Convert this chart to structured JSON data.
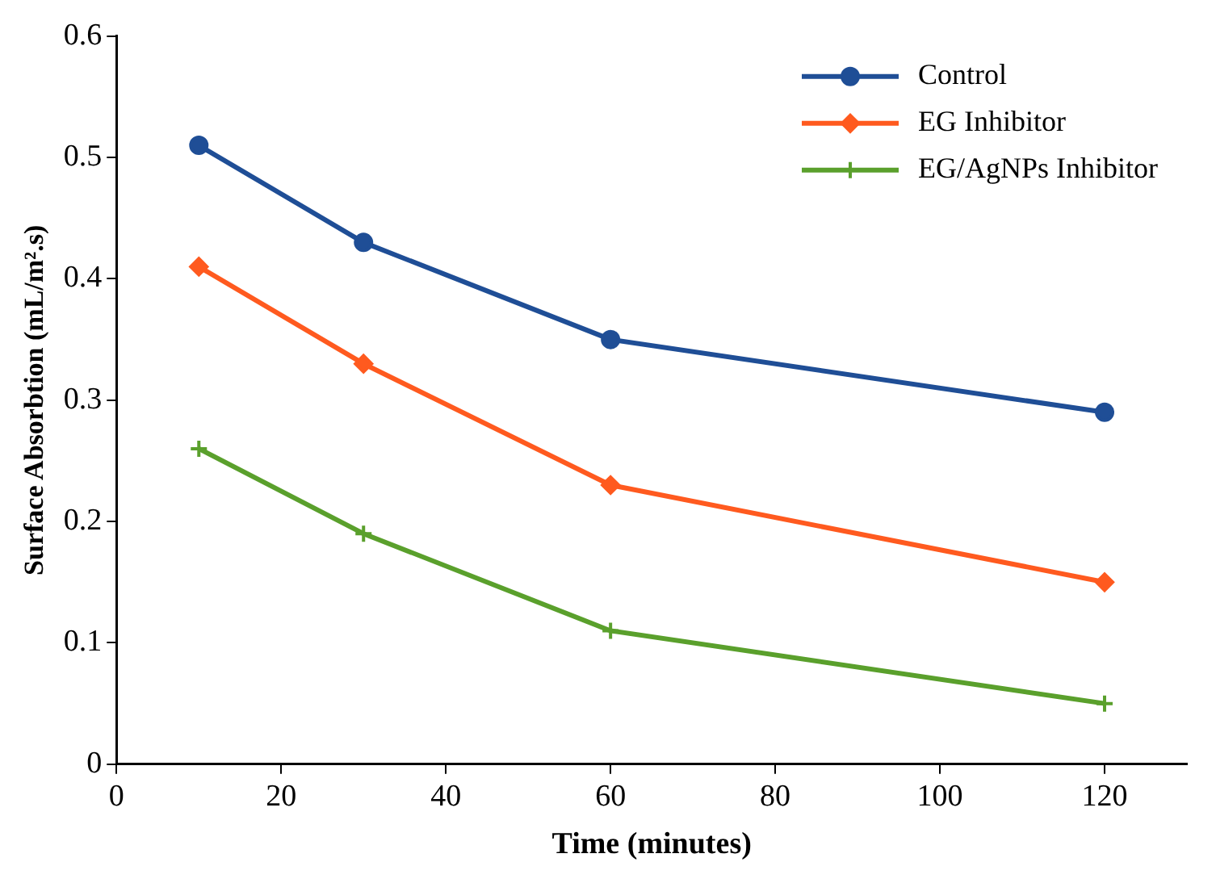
{
  "chart_data": {
    "type": "line",
    "xlabel": "Time (minutes)",
    "ylabel": "Surface Absorbtion (mL/m².s)",
    "x": [
      10,
      30,
      60,
      120
    ],
    "series": [
      {
        "name": "Control",
        "color": "#1f4e96",
        "values": [
          0.51,
          0.43,
          0.35,
          0.29
        ],
        "marker": "circle"
      },
      {
        "name": "EG Inhibitor",
        "color": "#ff5a1f",
        "values": [
          0.41,
          0.33,
          0.23,
          0.15
        ],
        "marker": "diamond"
      },
      {
        "name": "EG/AgNPs Inhibitor",
        "color": "#5aa02c",
        "values": [
          0.26,
          0.19,
          0.11,
          0.05
        ],
        "marker": "cross"
      }
    ],
    "xlim": [
      0,
      130
    ],
    "xticks": [
      0,
      20,
      40,
      60,
      80,
      100,
      120
    ],
    "ylim": [
      0,
      0.6
    ],
    "yticks": [
      0,
      0.1,
      0.2,
      0.3,
      0.4,
      0.5,
      0.6
    ],
    "grid": false,
    "legend": "top right",
    "line_style": "solid"
  }
}
